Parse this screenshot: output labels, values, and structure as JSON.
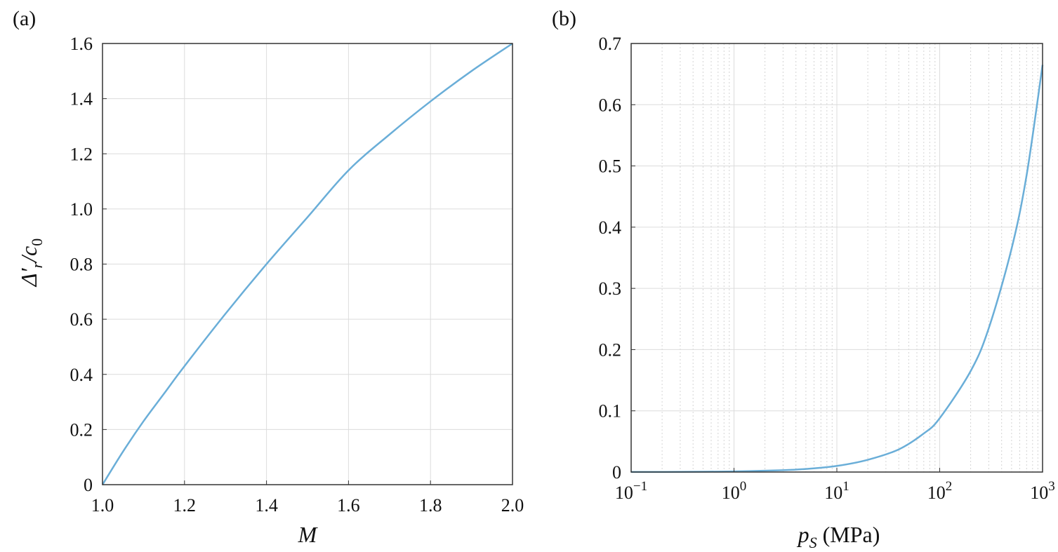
{
  "chart_data": [
    {
      "panel": "(a)",
      "type": "line",
      "xlabel": "M",
      "ylabel": {
        "main": "Δ′",
        "sub": "r",
        "rest": "/c",
        "sub2": "0"
      },
      "xlim": [
        1.0,
        2.0
      ],
      "ylim": [
        0,
        1.6
      ],
      "x_ticks": [
        1.0,
        1.2,
        1.4,
        1.6,
        1.8,
        2.0
      ],
      "x_tick_labels": [
        "1.0",
        "1.2",
        "1.4",
        "1.6",
        "1.8",
        "2.0"
      ],
      "y_ticks": [
        0,
        0.2,
        0.4,
        0.6,
        0.8,
        1.0,
        1.2,
        1.4,
        1.6
      ],
      "y_tick_labels": [
        "0",
        "0.2",
        "0.4",
        "0.6",
        "0.8",
        "1.0",
        "1.2",
        "1.4",
        "1.6"
      ],
      "grid": true,
      "color": "#6aaed8",
      "series": [
        {
          "x": [
            1.0,
            1.05,
            1.1,
            1.15,
            1.2,
            1.3,
            1.4,
            1.5,
            1.6,
            1.7,
            1.8,
            1.9,
            2.0
          ],
          "y": [
            0,
            0.12,
            0.23,
            0.33,
            0.43,
            0.62,
            0.8,
            0.97,
            1.14,
            1.27,
            1.39,
            1.5,
            1.6
          ]
        }
      ]
    },
    {
      "panel": "(b)",
      "type": "line",
      "xlabel": {
        "main": "p",
        "sub": "S",
        "rest": " (MPa)"
      },
      "ylabel": "",
      "x_scale": "log",
      "xlim": [
        0.1,
        1000
      ],
      "ylim": [
        0,
        0.7
      ],
      "x_ticks": [
        0.1,
        1,
        10,
        100,
        1000
      ],
      "x_tick_labels": [
        {
          "base": "10",
          "exp": "−1"
        },
        {
          "base": "10",
          "exp": "0"
        },
        {
          "base": "10",
          "exp": "1"
        },
        {
          "base": "10",
          "exp": "2"
        },
        {
          "base": "10",
          "exp": "3"
        }
      ],
      "y_ticks": [
        0,
        0.1,
        0.2,
        0.3,
        0.4,
        0.5,
        0.6,
        0.7
      ],
      "y_tick_labels": [
        "0",
        "0.1",
        "0.2",
        "0.3",
        "0.4",
        "0.5",
        "0.6",
        "0.7"
      ],
      "grid": true,
      "minor_grid": true,
      "color": "#6aaed8",
      "series": [
        {
          "x": [
            0.1,
            0.3,
            1,
            3,
            5,
            10,
            20,
            40,
            70,
            100,
            200,
            300,
            500,
            700,
            1000
          ],
          "y": [
            0.0001,
            0.0003,
            0.001,
            0.003,
            0.005,
            0.01,
            0.02,
            0.037,
            0.063,
            0.088,
            0.165,
            0.235,
            0.365,
            0.485,
            0.665
          ]
        }
      ]
    }
  ]
}
